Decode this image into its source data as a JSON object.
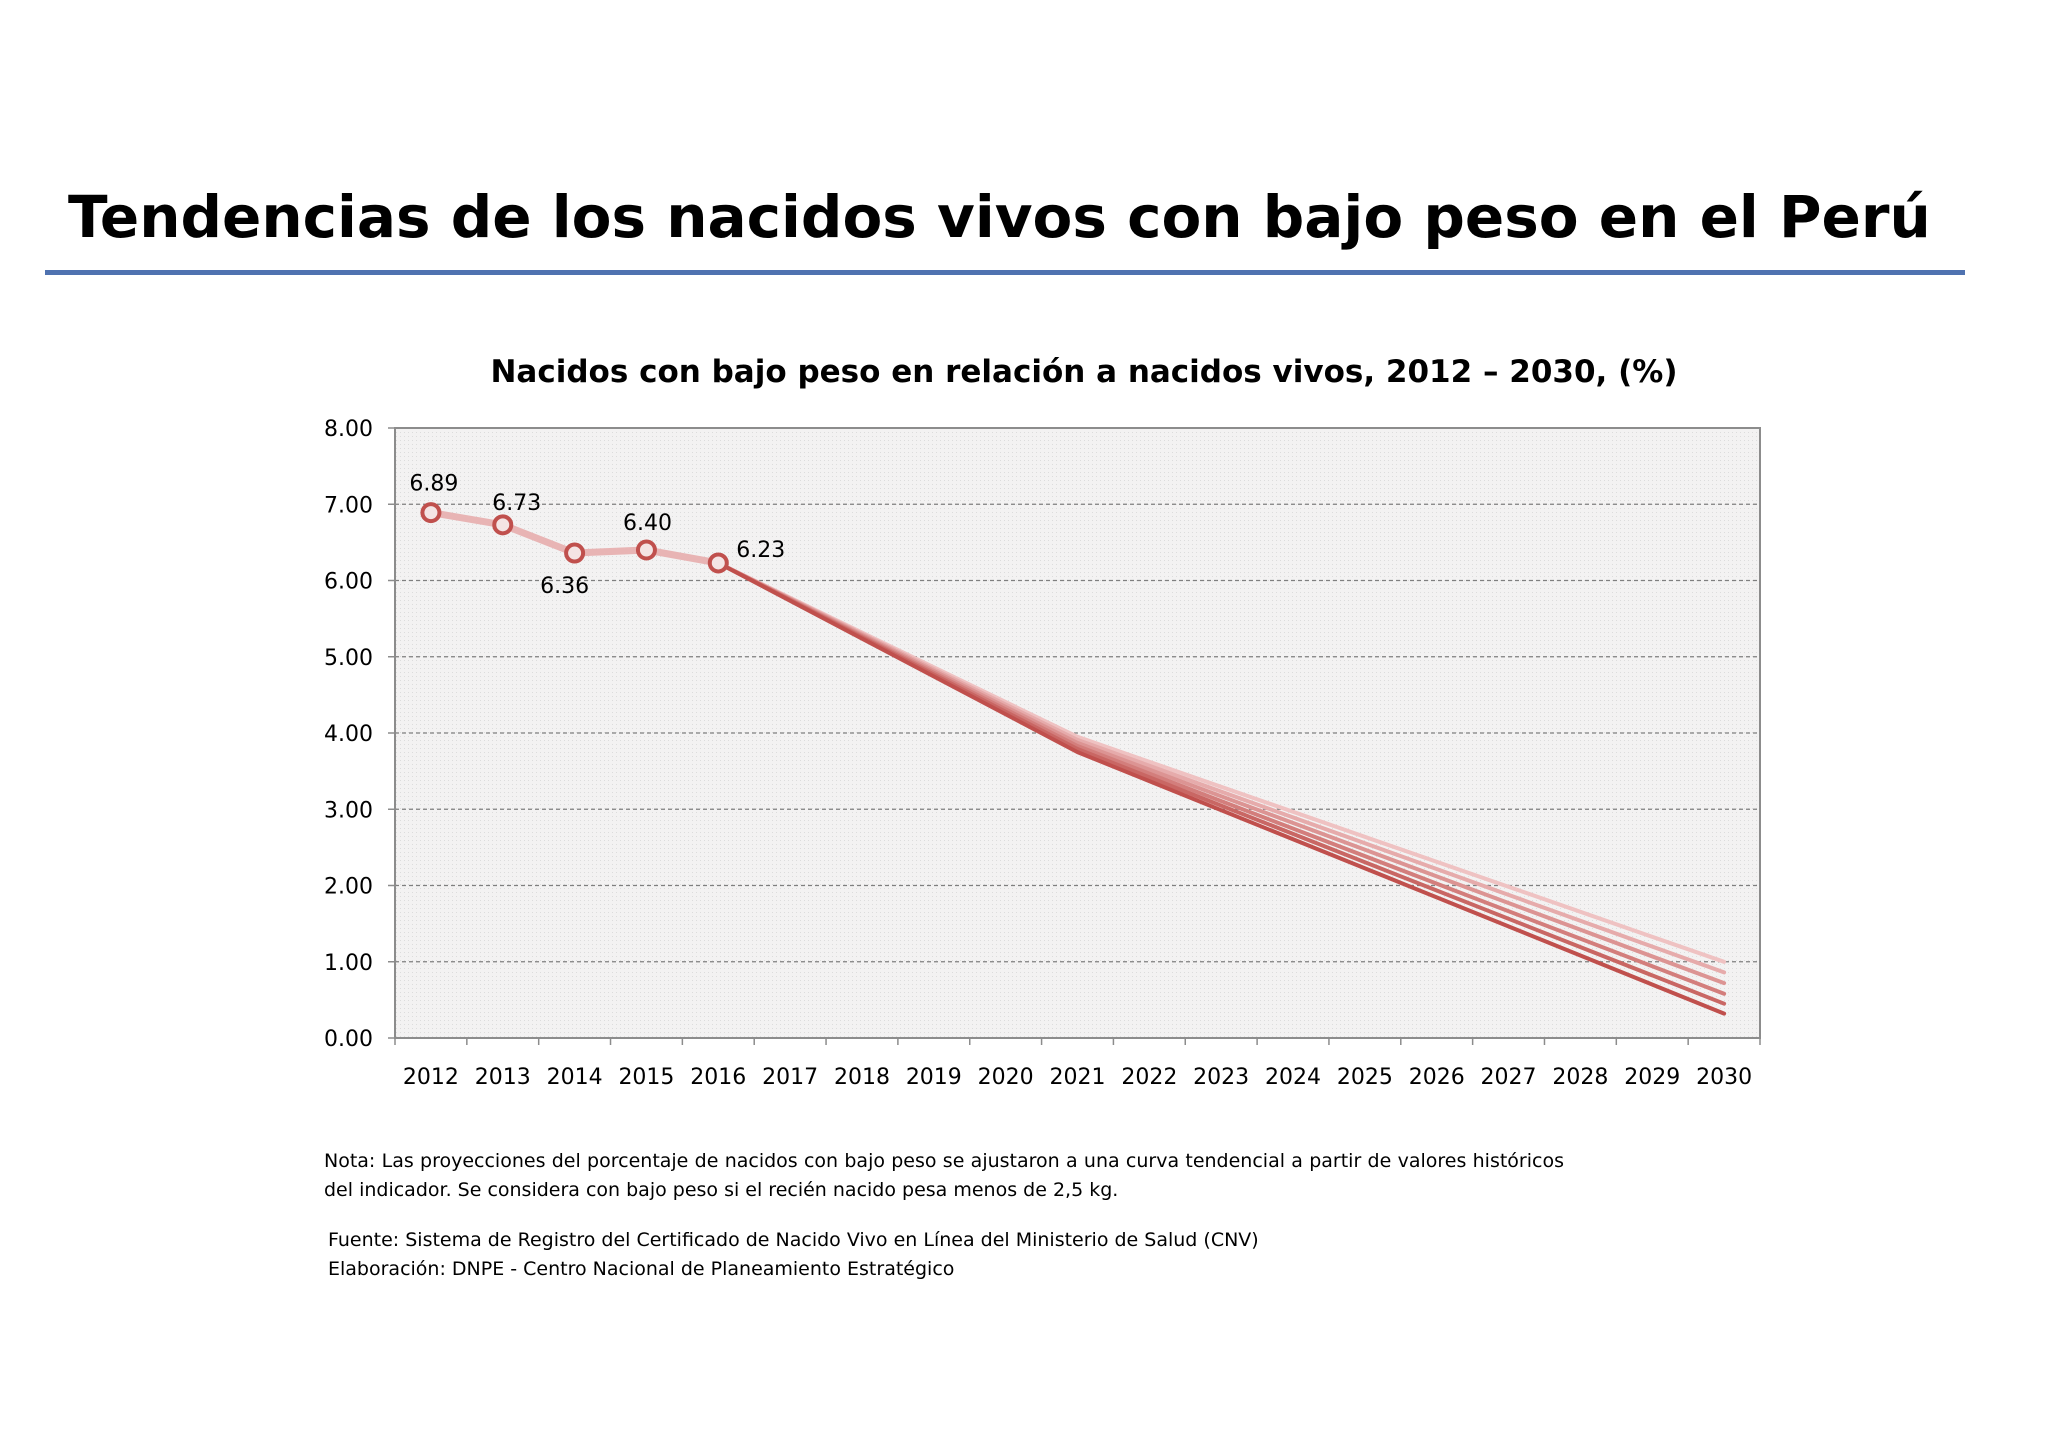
{
  "page": {
    "title": "Tendencias de los nacidos vivos con bajo peso en el Perú"
  },
  "chart_data": {
    "type": "line",
    "title": "Nacidos con bajo peso en relación a nacidos vivos, 2012 – 2030, (%)",
    "xlabel": "",
    "ylabel": "",
    "categories": [
      "2012",
      "2013",
      "2014",
      "2015",
      "2016",
      "2017",
      "2018",
      "2019",
      "2020",
      "2021",
      "2022",
      "2023",
      "2024",
      "2025",
      "2026",
      "2027",
      "2028",
      "2029",
      "2030"
    ],
    "y_ticks": [
      "0.00",
      "1.00",
      "2.00",
      "3.00",
      "4.00",
      "5.00",
      "6.00",
      "7.00",
      "8.00"
    ],
    "ylim": [
      0,
      8
    ],
    "grid": true,
    "legend": "none",
    "historical": {
      "x": [
        "2012",
        "2013",
        "2014",
        "2015",
        "2016"
      ],
      "values": [
        6.89,
        6.73,
        6.36,
        6.4,
        6.23
      ],
      "labels": [
        "6.89",
        "6.73",
        "6.36",
        "6.40",
        "6.23"
      ]
    },
    "projections": [
      {
        "x": [
          "2016",
          "2021",
          "2030"
        ],
        "values": [
          6.23,
          3.95,
          1.0
        ]
      },
      {
        "x": [
          "2016",
          "2021",
          "2030"
        ],
        "values": [
          6.23,
          3.91,
          0.86
        ]
      },
      {
        "x": [
          "2016",
          "2021",
          "2030"
        ],
        "values": [
          6.23,
          3.87,
          0.72
        ]
      },
      {
        "x": [
          "2016",
          "2021",
          "2030"
        ],
        "values": [
          6.23,
          3.83,
          0.58
        ]
      },
      {
        "x": [
          "2016",
          "2021",
          "2030"
        ],
        "values": [
          6.23,
          3.79,
          0.45
        ]
      },
      {
        "x": [
          "2016",
          "2021",
          "2030"
        ],
        "values": [
          6.23,
          3.75,
          0.32
        ]
      }
    ],
    "colors": {
      "historical_line": "#e8b4b4",
      "marker": "#c0504d",
      "projection_light": "#efc2c2",
      "projection_dark": "#c0504d",
      "plot_bg": "#efefef",
      "frame": "#8c8c8c",
      "grid": "#7f7f7f"
    }
  },
  "footer": {
    "note": "Nota: Las proyecciones del porcentaje de nacidos con bajo peso se ajustaron a una curva tendencial a partir de valores históricos del indicador. Se considera con bajo peso si el recién nacido pesa menos de 2,5 kg.",
    "source": "Fuente: Sistema de Registro del Certificado de Nacido Vivo en Línea del Ministerio de Salud (CNV)",
    "elaboration": "Elaboración: DNPE -  Centro Nacional de Planeamiento Estratégico"
  }
}
